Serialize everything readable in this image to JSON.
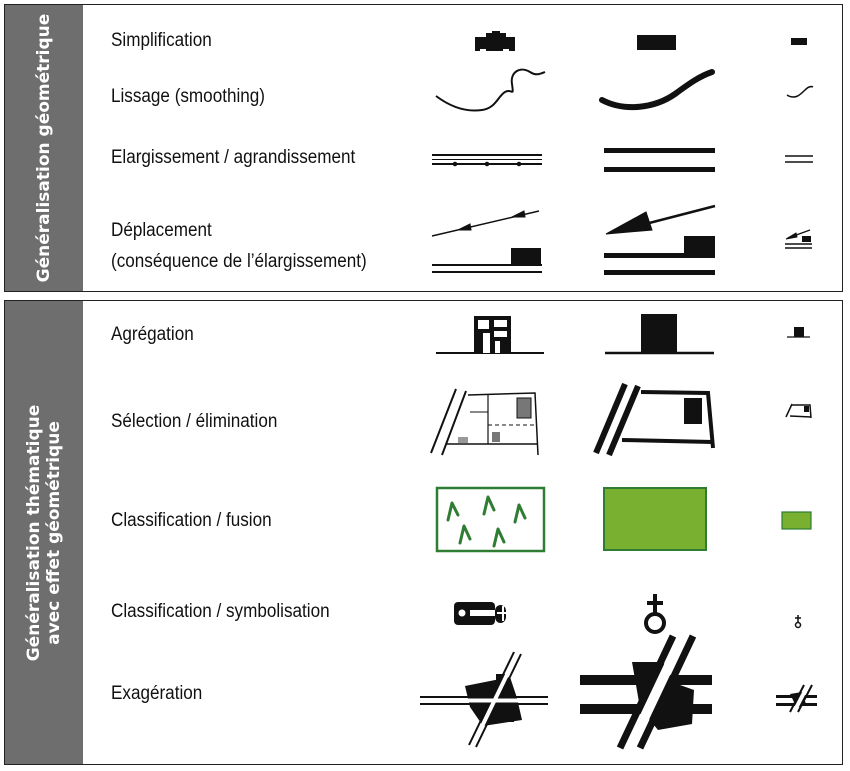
{
  "sections": [
    {
      "title": "Généralisation géométrique",
      "rows": [
        {
          "label": "Simplification"
        },
        {
          "label": "Lissage (smoothing)"
        },
        {
          "label": "Elargissement / agrandissement"
        },
        {
          "label_lines": [
            "Déplacement",
            "(conséquence de l’élargissement)"
          ]
        }
      ]
    },
    {
      "title_lines": [
        "Généralisation thématique",
        "avec effet géométrique"
      ],
      "rows": [
        {
          "label": "Agrégation"
        },
        {
          "label": "Sélection / élimination"
        },
        {
          "label": "Classification / fusion"
        },
        {
          "label": "Classification / symbolisation"
        },
        {
          "label": "Exagération"
        }
      ]
    }
  ],
  "colors": {
    "sidebar": "#6e6e6e",
    "vegetation_fill": "#7ab030",
    "vegetation_stroke": "#2e7d32",
    "ink": "#111111"
  }
}
